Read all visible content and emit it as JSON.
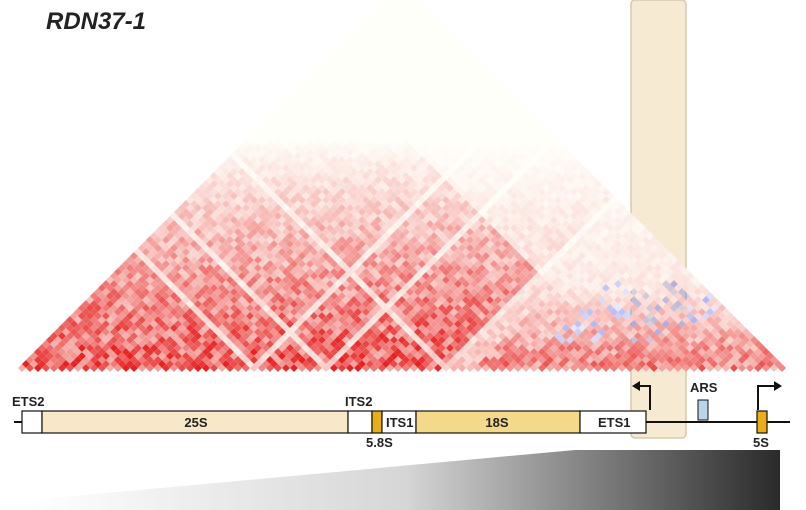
{
  "title": "RDN37-1",
  "colors": {
    "heat_high": "#e8262a",
    "heat_low": "#ffffff",
    "negative": "#6a6ae0",
    "highlight": "#f7ead3",
    "highlight_border": "#d8c9b0",
    "gene_light": "#f8e8c8",
    "gene_mid": "#f4d98a",
    "gene_dark": "#e9ae17",
    "ars": "#bcd4ea",
    "line": "#111111"
  },
  "features": {
    "ets2": "ETS2",
    "s25": "25S",
    "its2": "ITS2",
    "s58": "5.8S",
    "its1": "ITS1",
    "s18": "18S",
    "ets1": "ETS1",
    "ars": "ARS",
    "s5": "5S"
  },
  "chart_data": {
    "type": "heatmap",
    "title": "RDN37-1",
    "description_free": true
  }
}
